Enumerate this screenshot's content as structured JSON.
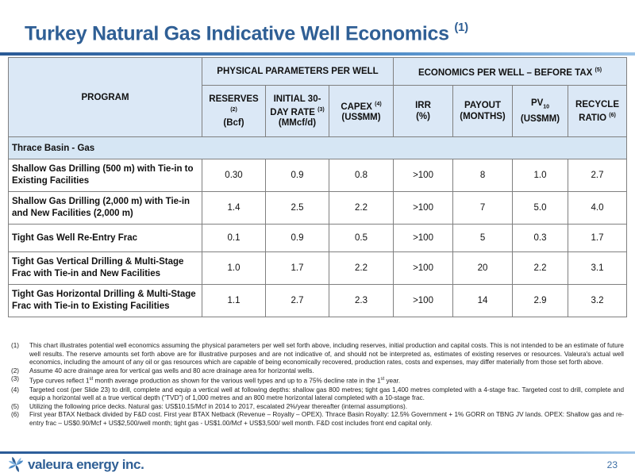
{
  "title": {
    "text": "Turkey Natural Gas Indicative Well Economics",
    "footnote_ref": "(1)"
  },
  "table": {
    "program_header": "PROGRAM",
    "group_physical": "PHYSICAL PARAMETERS PER WELL",
    "group_economics": "ECONOMICS PER WELL – BEFORE TAX",
    "group_economics_ref": "(5)",
    "columns": {
      "reserves": {
        "label": "RESERVES",
        "ref": "(2)",
        "unit": "(Bcf)"
      },
      "initial_rate": {
        "line1": "INITIAL 30-",
        "line2": "DAY RATE",
        "ref": "(3)",
        "unit": "(MMcf/d)"
      },
      "capex": {
        "label": "CAPEX",
        "ref": "(4)",
        "unit": "(US$MM)"
      },
      "irr": {
        "label": "IRR",
        "unit": "(%)"
      },
      "payout": {
        "label": "PAYOUT",
        "unit": "(MONTHS)"
      },
      "pv10": {
        "label": "PV",
        "sub": "10",
        "unit": "(US$MM)"
      },
      "recycle": {
        "line1": "RECYCLE",
        "line2": "RATIO",
        "ref": "(6)"
      }
    },
    "section": "Thrace Basin - Gas",
    "rows": [
      {
        "program": "Shallow Gas Drilling (500 m) with Tie-in to Existing Facilities",
        "reserves": "0.30",
        "rate": "0.9",
        "capex": "0.8",
        "irr": ">100",
        "payout": "8",
        "pv10": "1.0",
        "recycle": "2.7"
      },
      {
        "program": "Shallow Gas Drilling (2,000 m) with Tie-in and New Facilities  (2,000 m)",
        "reserves": "1.4",
        "rate": "2.5",
        "capex": "2.2",
        "irr": ">100",
        "payout": "7",
        "pv10": "5.0",
        "recycle": "4.0"
      },
      {
        "program": "Tight Gas Well Re-Entry Frac",
        "reserves": "0.1",
        "rate": "0.9",
        "capex": "0.5",
        "irr": ">100",
        "payout": "5",
        "pv10": "0.3",
        "recycle": "1.7"
      },
      {
        "program": "Tight Gas Vertical Drilling & Multi-Stage Frac with Tie-in and New Facilities",
        "reserves": "1.0",
        "rate": "1.7",
        "capex": "2.2",
        "irr": ">100",
        "payout": "20",
        "pv10": "2.2",
        "recycle": "3.1"
      },
      {
        "program": "Tight Gas Horizontal Drilling & Multi-Stage Frac with Tie-in to Existing Facilities",
        "reserves": "1.1",
        "rate": "2.7",
        "capex": "2.3",
        "irr": ">100",
        "payout": "14",
        "pv10": "2.9",
        "recycle": "3.2"
      }
    ]
  },
  "notes": [
    {
      "num": "(1)",
      "text": "This chart illustrates potential well economics assuming the physical parameters per well set forth above, including reserves, initial production and capital costs.  This is not intended to be an estimate of future well results. The reserve amounts set forth above are for illustrative purposes and are not indicative of, and should not be interpreted as, estimates of existing reserves or resources.  Valeura's actual well economics, including the amount of any oil or gas resources which are capable of being economically recovered, production rates, costs and expenses, may differ materially from those set forth above."
    },
    {
      "num": "(2)",
      "text": "Assume 40 acre drainage area for vertical gas wells and 80 acre drainage area for horizontal wells."
    },
    {
      "num": "(3)",
      "text_a": "Type curves reflect 1",
      "sup_a": "st",
      "text_b": " month average production as shown for the various well types and up to a 75% decline rate in the 1",
      "sup_b": "st",
      "text_c": " year."
    },
    {
      "num": "(4)",
      "text": "Targeted cost (per Slide 23) to drill, complete and equip a vertical well at following depths: shallow gas 800 metres;  tight gas  1,400 metres completed with a 4-stage frac. Targeted cost to drill, complete and equip a horizontal well at a true vertical depth (“TVD”) of 1,000 metres and an 800 metre horizontal lateral completed with a 10-stage frac."
    },
    {
      "num": "(5)",
      "text": "Utilizing the following price decks. Natural gas:  US$10.15/Mcf in 2014 to 2017, escalated 2%/year thereafter (internal assumptions)."
    },
    {
      "num": "(6)",
      "text": "First year BTAX Netback divided by F&D cost. First year BTAX Netback (Revenue – Royalty – OPEX). Thrace Basin Royalty: 12.5% Government + 1% GORR on TBNG JV lands. OPEX: Shallow gas and re-entry frac – US$0.90/Mcf + US$2,500/well month;  tight gas - US$1.00/Mcf + US$3,500/ well month. F&D cost includes front end capital only."
    }
  ],
  "footer": {
    "logo_text": "valeura energy inc.",
    "page_number": "23"
  },
  "colors": {
    "title": "#2f5f95",
    "header_fill": "#dbe8f6",
    "section_fill": "#d6e6f4",
    "rule": "#2a5a96"
  }
}
